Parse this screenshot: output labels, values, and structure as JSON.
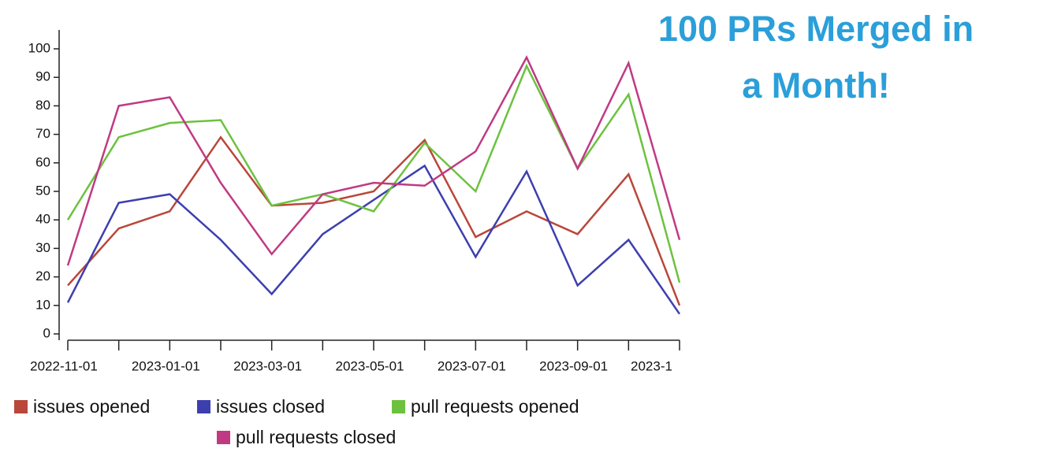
{
  "chart_data": {
    "type": "line",
    "title_lines": [
      "100 PRs Merged in",
      "a Month!"
    ],
    "x": [
      "2022-11-01",
      "2022-12-01",
      "2023-01-01",
      "2023-02-01",
      "2023-03-01",
      "2023-04-01",
      "2023-05-01",
      "2023-06-01",
      "2023-07-01",
      "2023-08-01",
      "2023-09-01",
      "2023-10-01",
      "2023-11-01"
    ],
    "xticks": [
      "2022-11-01",
      "2023-01-01",
      "2023-03-01",
      "2023-05-01",
      "2023-07-01",
      "2023-09-01",
      {
        "value": "2023-11-01",
        "label": "2023-1"
      }
    ],
    "ylim": [
      0,
      107
    ],
    "yticks": [
      0,
      10,
      20,
      30,
      40,
      50,
      60,
      70,
      80,
      90,
      100
    ],
    "series": [
      {
        "name": "issues opened",
        "color": "#b9473a",
        "values": [
          17,
          37,
          43,
          69,
          45,
          46,
          50,
          68,
          34,
          43,
          35,
          56,
          10
        ]
      },
      {
        "name": "issues closed",
        "color": "#3d3fae",
        "values": [
          11,
          46,
          49,
          33,
          14,
          35,
          47,
          59,
          27,
          57,
          17,
          33,
          7
        ]
      },
      {
        "name": "pull requests opened",
        "color": "#6cc23f",
        "values": [
          40,
          69,
          74,
          75,
          45,
          49,
          43,
          67,
          50,
          94,
          58,
          84,
          18
        ]
      },
      {
        "name": "pull requests closed",
        "color": "#c03a83",
        "values": [
          24,
          80,
          83,
          53,
          28,
          49,
          53,
          52,
          64,
          97,
          58,
          95,
          33
        ]
      }
    ]
  }
}
